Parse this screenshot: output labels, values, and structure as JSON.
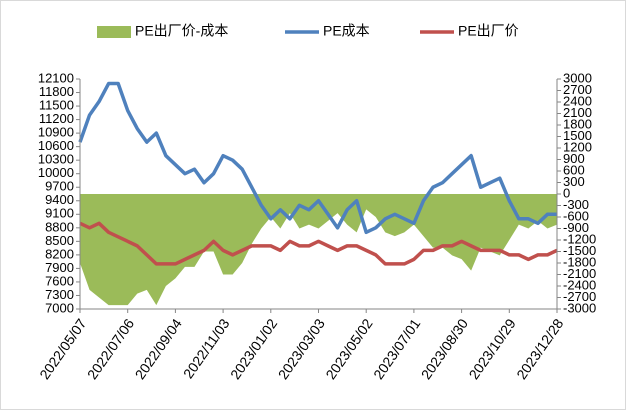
{
  "chart_data": {
    "type": "line",
    "categories": [
      "2022/05/07",
      null,
      null,
      null,
      null,
      "2022/07/06",
      null,
      null,
      null,
      null,
      "2022/09/04",
      null,
      null,
      null,
      null,
      "2022/11/03",
      null,
      null,
      null,
      null,
      "2023/01/02",
      null,
      null,
      null,
      null,
      "2023/03/03",
      null,
      null,
      null,
      null,
      "2023/05/02",
      null,
      null,
      null,
      null,
      "2023/07/01",
      null,
      null,
      null,
      null,
      "2023/08/30",
      null,
      null,
      null,
      null,
      "2023/10/29",
      null,
      null,
      null,
      null,
      "2023/12/28"
    ],
    "series": [
      {
        "name": "PE出厂价-成本",
        "type": "area",
        "axis": "y2",
        "color": "#9bbb59",
        "values": [
          -1800,
          -2500,
          -2700,
          -2900,
          -2900,
          -2900,
          -2600,
          -2500,
          -2900,
          -2400,
          -2200,
          -1900,
          -1900,
          -1500,
          -1500,
          -2100,
          -2100,
          -1800,
          -1300,
          -900,
          -600,
          -900,
          -500,
          -900,
          -800,
          -900,
          -700,
          -500,
          -800,
          -1000,
          -400,
          -600,
          -1000,
          -1100,
          -1000,
          -800,
          -1100,
          -1400,
          -1400,
          -1600,
          -1700,
          -2000,
          -1400,
          -1500,
          -1600,
          -1200,
          -800,
          -900,
          -700,
          -900,
          -800
        ]
      },
      {
        "name": "PE成本",
        "type": "line",
        "color": "#4f81bd",
        "values": [
          10700,
          11300,
          11600,
          12000,
          12000,
          11400,
          11000,
          10700,
          10900,
          10400,
          10200,
          10000,
          10100,
          9800,
          10000,
          10400,
          10300,
          10100,
          9700,
          9300,
          9000,
          9200,
          9000,
          9300,
          9200,
          9400,
          9100,
          8800,
          9200,
          9400,
          8700,
          8800,
          9000,
          9100,
          9000,
          8900,
          9400,
          9700,
          9800,
          10000,
          10200,
          10400,
          9700,
          9800,
          9900,
          9400,
          9000,
          9000,
          8900,
          9100,
          9100
        ]
      },
      {
        "name": "PE出厂价",
        "type": "line",
        "color": "#c0504d",
        "values": [
          8900,
          8800,
          8900,
          8700,
          8600,
          8500,
          8400,
          8200,
          8000,
          8000,
          8000,
          8100,
          8200,
          8300,
          8500,
          8300,
          8200,
          8300,
          8400,
          8400,
          8400,
          8300,
          8500,
          8400,
          8400,
          8500,
          8400,
          8300,
          8400,
          8400,
          8300,
          8200,
          8000,
          8000,
          8000,
          8100,
          8300,
          8300,
          8400,
          8400,
          8500,
          8400,
          8300,
          8300,
          8300,
          8200,
          8200,
          8100,
          8200,
          8200,
          8300
        ]
      }
    ],
    "ylim": [
      7000,
      12100
    ],
    "yticks": [
      7000,
      7300,
      7600,
      7900,
      8200,
      8500,
      8800,
      9100,
      9400,
      9700,
      10000,
      10300,
      10600,
      10900,
      11200,
      11500,
      11800,
      12100
    ],
    "y2lim": [
      -3000,
      3000
    ],
    "y2ticks": [
      -3000,
      -2700,
      -2400,
      -2100,
      -1800,
      -1500,
      -1200,
      -900,
      -600,
      -300,
      0,
      300,
      600,
      900,
      1200,
      1500,
      1800,
      2100,
      2400,
      2700,
      3000
    ],
    "legend": "top",
    "grid": false
  }
}
